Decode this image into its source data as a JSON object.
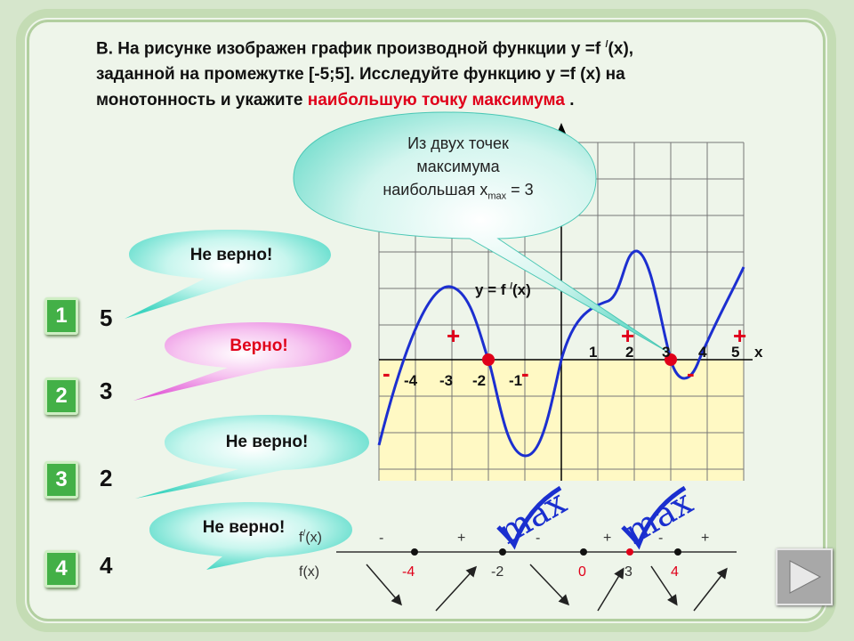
{
  "problem": {
    "line1_prefix": "В. На рисунке изображен график  производной функции y =f ",
    "prime": "/",
    "line1_suffix": "(x),",
    "line2": "заданной на промежутке [-5;5]. Исследуйте функцию y =f (x) на",
    "line3_prefix": "монотонность и укажите ",
    "line3_highlight": "наибольшую точку максимума",
    "line3_suffix": " ."
  },
  "callout": {
    "line1": "Из двух точек",
    "line2": "максимума",
    "line3_prefix": "наибольшая x",
    "line3_sub": "max",
    "line3_suffix": " = 3"
  },
  "options": [
    {
      "number": "1",
      "answer": "5",
      "feedback": "Не верно!"
    },
    {
      "number": "2",
      "answer": "3",
      "feedback": "Верно!"
    },
    {
      "number": "3",
      "answer": "2",
      "feedback": "Не верно!"
    },
    {
      "number": "4",
      "answer": "4",
      "feedback": "Не верно!"
    }
  ],
  "graph": {
    "function_label_prefix": "y = f ",
    "function_label_prime": "/",
    "function_label_suffix": "(x)",
    "x_axis_label": "x",
    "neg_ticks": [
      "-4",
      "-3",
      "-2",
      "-1"
    ],
    "pos_ticks": [
      "1",
      "2",
      "3",
      "4",
      "5"
    ],
    "signs": {
      "plus": "+",
      "minus": "-"
    }
  },
  "sign_table": {
    "row1_label": "f",
    "row1_prime": "/",
    "row1_suffix": "(x)",
    "row2_label": "f(x)",
    "signs": [
      "-",
      "+",
      "-",
      "+",
      "-",
      "+"
    ],
    "points": [
      "-4",
      "-2",
      "0",
      "3",
      "4"
    ],
    "max_label": "max"
  },
  "colors": {
    "accent_red": "#e0001a",
    "curve_blue": "#1c2fd0",
    "button_green": "#43b047",
    "bubble_cyan": "#3dd4c0",
    "bubble_pink": "#e25fd8",
    "checkmark_blue": "#1a2fcf"
  }
}
